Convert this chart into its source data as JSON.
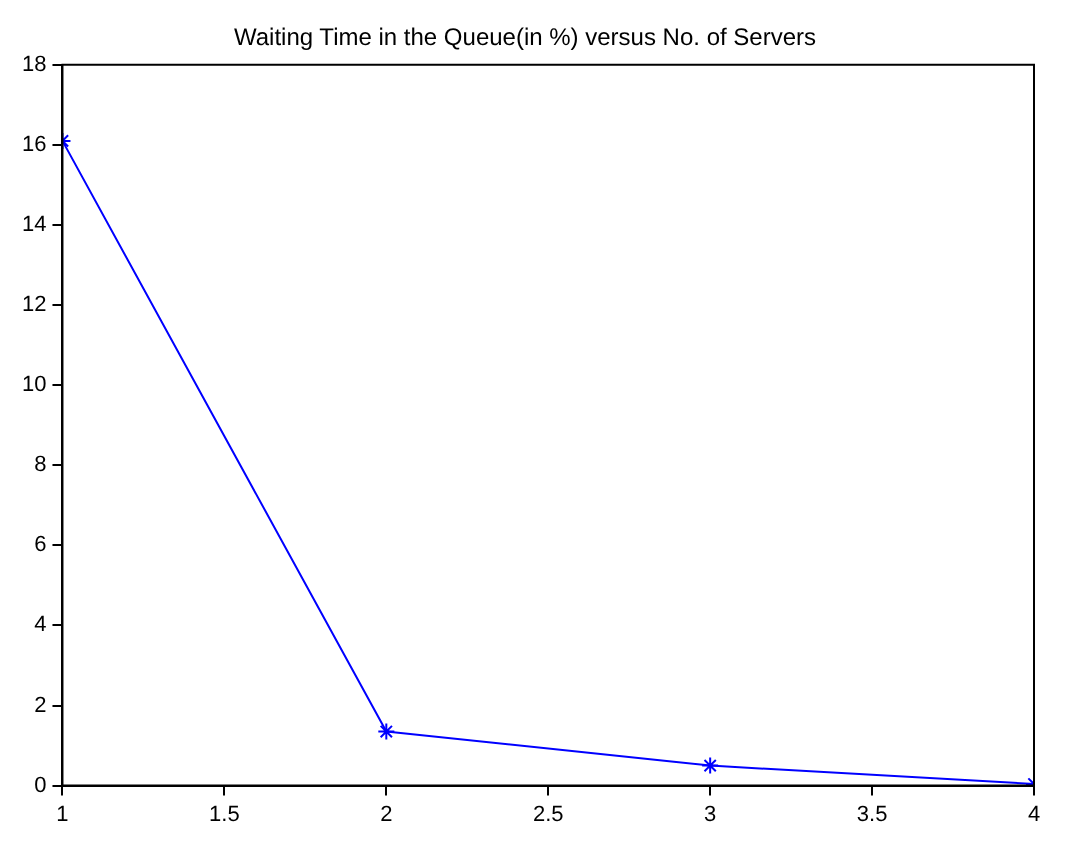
{
  "chart_data": {
    "type": "line",
    "title": "Waiting Time in the Queue(in %) versus No. of Servers",
    "x": [
      1,
      2,
      3,
      4
    ],
    "series": [
      {
        "color": "#0000ff",
        "values": [
          16.1,
          1.35,
          0.5,
          0.04
        ]
      }
    ],
    "xlim": [
      1,
      4
    ],
    "xticks": [
      1,
      1.5,
      2,
      2.5,
      3,
      3.5,
      4
    ],
    "ylim": [
      0,
      18
    ],
    "yticks": [
      0,
      2,
      4,
      6,
      8,
      10,
      12,
      14,
      16,
      18
    ],
    "grid": false,
    "legend": false,
    "marker": "cross",
    "line_style": "solid"
  }
}
